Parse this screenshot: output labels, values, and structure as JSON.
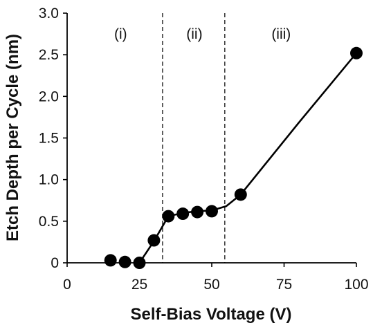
{
  "chart_data": {
    "type": "scatter",
    "title": "",
    "xlabel": "Self-Bias Voltage (V)",
    "ylabel": "Etch Depth per Cycle (nm)",
    "xlim": [
      0,
      100
    ],
    "ylim": [
      0,
      3.0
    ],
    "x_ticks": [
      0,
      25,
      50,
      75,
      100
    ],
    "x_tick_labels": [
      "0",
      "25",
      "50",
      "75",
      "100"
    ],
    "y_ticks": [
      0,
      0.5,
      1.0,
      1.5,
      2.0,
      2.5,
      3.0
    ],
    "y_tick_labels": [
      "0",
      "0.5",
      "1.0",
      "1.5",
      "2.0",
      "2.5",
      "3.0"
    ],
    "grid": false,
    "series": [
      {
        "x": [
          15,
          20,
          25,
          30,
          35,
          40,
          45,
          50,
          60,
          100
        ],
        "y": [
          0.03,
          0.01,
          0.0,
          0.27,
          0.56,
          0.59,
          0.61,
          0.62,
          0.82,
          2.52
        ],
        "marker": "circle",
        "color": "#000000"
      }
    ],
    "trend_line": {
      "x": [
        25,
        30,
        35,
        40,
        45,
        50,
        55,
        60,
        70,
        80,
        90,
        100
      ],
      "y": [
        0.0,
        0.26,
        0.56,
        0.6,
        0.62,
        0.63,
        0.68,
        0.82,
        1.25,
        1.68,
        2.1,
        2.52
      ]
    },
    "dividers": [
      33,
      54.5
    ],
    "regions": [
      {
        "label": "(i)",
        "x": 18.5
      },
      {
        "label": "(ii)",
        "x": 44
      },
      {
        "label": "(iii)",
        "x": 74
      }
    ]
  }
}
